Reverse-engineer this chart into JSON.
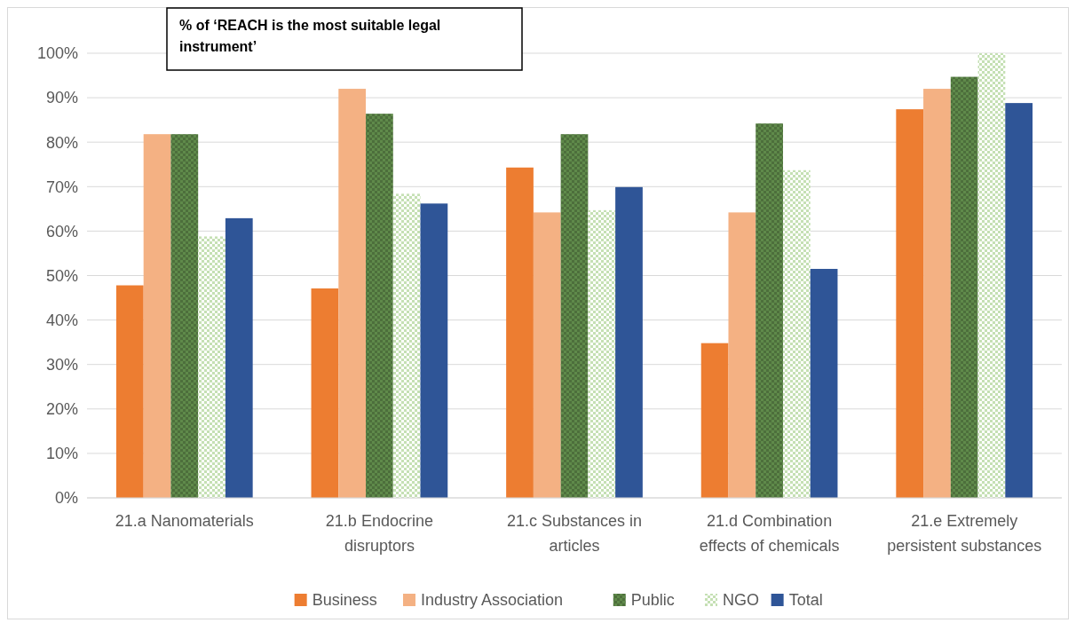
{
  "chart_data": {
    "type": "bar",
    "title": "% of ‘REACH is the most suitable legal instrument’",
    "categories": [
      "21.a Nanomaterials",
      "21.b Endocrine disruptors",
      "21.c Substances in articles",
      "21.d Combination effects of chemicals",
      "21.e Extremely persistent substances"
    ],
    "series": [
      {
        "name": "Business",
        "color": "#ed7d31",
        "values": [
          47.8,
          47.1,
          74.3,
          34.8,
          87.4
        ]
      },
      {
        "name": "Industry Association",
        "color": "#f4b183",
        "values": [
          81.8,
          92,
          64.2,
          64.2,
          92
        ]
      },
      {
        "name": "Public",
        "color": "#5f8a4a",
        "values": [
          81.8,
          86.4,
          81.8,
          84.2,
          94.7
        ]
      },
      {
        "name": "NGO",
        "color": "#c5e0b4",
        "values": [
          58.8,
          68.4,
          64.7,
          73.7,
          100
        ]
      },
      {
        "name": "Total",
        "color": "#2f5597",
        "values": [
          62.9,
          66.2,
          69.9,
          51.5,
          88.8
        ]
      }
    ],
    "ylim": [
      0,
      100
    ],
    "yticks": [
      {
        "value": 0,
        "label": "0%"
      },
      {
        "value": 10,
        "label": "10%"
      },
      {
        "value": 20,
        "label": "20%"
      },
      {
        "value": 30,
        "label": "30%"
      },
      {
        "value": 40,
        "label": "40%"
      },
      {
        "value": 50,
        "label": "50%"
      },
      {
        "value": 60,
        "label": "60%"
      },
      {
        "value": 70,
        "label": "70%"
      },
      {
        "value": 80,
        "label": "80%"
      },
      {
        "value": 90,
        "label": "90%"
      },
      {
        "value": 100,
        "label": "100%"
      }
    ],
    "grid": "y",
    "legend": "bottom"
  }
}
